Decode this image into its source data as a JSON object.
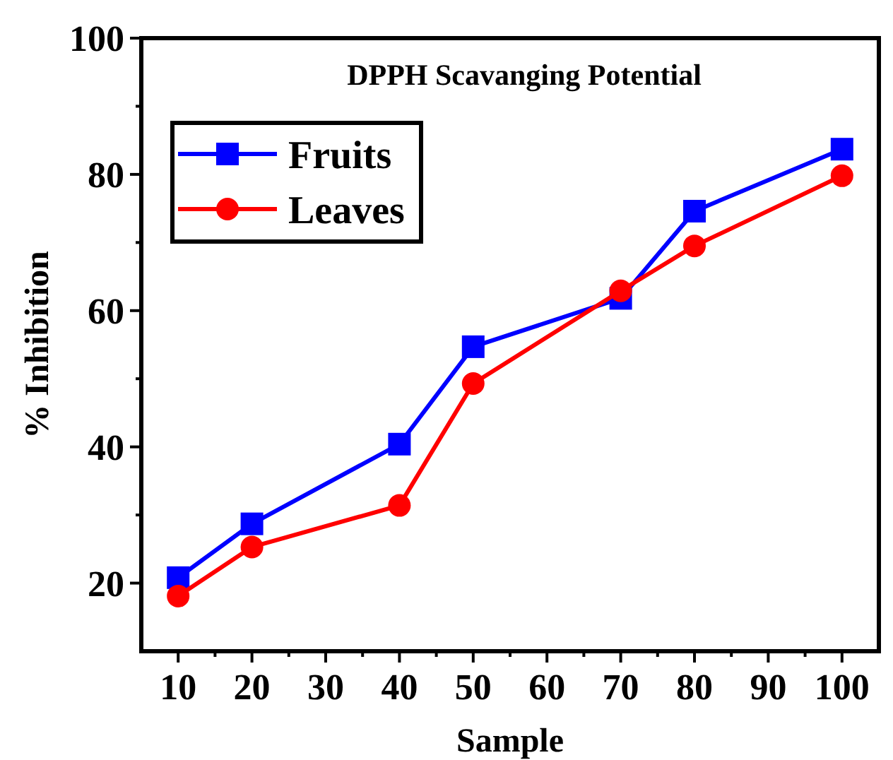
{
  "chart_data": {
    "type": "line",
    "title": "DPPH Scavanging Potential",
    "xlabel": "Sample",
    "ylabel": "% Inhibition",
    "x": [
      10,
      20,
      40,
      50,
      70,
      80,
      100
    ],
    "series": [
      {
        "name": "Fruits",
        "color": "#0000ff",
        "marker": "square",
        "values": [
          20.8,
          28.7,
          40.4,
          54.7,
          61.8,
          74.6,
          83.7
        ]
      },
      {
        "name": "Leaves",
        "color": "#ff0000",
        "marker": "circle",
        "values": [
          18.1,
          25.3,
          31.4,
          49.3,
          62.9,
          69.5,
          79.8
        ]
      }
    ],
    "xlim": [
      5,
      105
    ],
    "xticks": [
      10,
      20,
      30,
      40,
      50,
      60,
      70,
      80,
      90,
      100
    ],
    "ylim": [
      10,
      100
    ],
    "yticks": [
      20,
      40,
      60,
      80,
      100
    ],
    "legend": "top left",
    "grid": false,
    "line_style": "solid"
  }
}
